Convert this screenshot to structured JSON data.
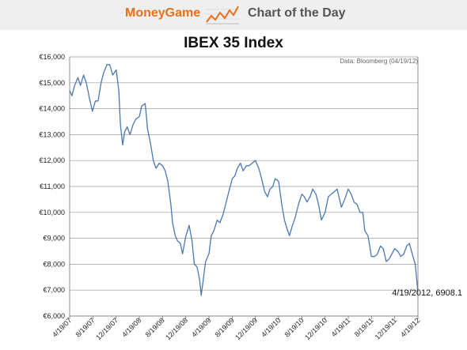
{
  "header": {
    "brand": "MoneyGame",
    "section": "Chart of the Day",
    "brand_color": "#e8701a",
    "icon": "rising-line-chart-icon"
  },
  "chart_data": {
    "type": "line",
    "title": "IBEX 35 Index",
    "source_note": "Data: Bloomberg (04/19/12)",
    "xlabel": "",
    "ylabel": "",
    "y_tick_labels": [
      "€6,000",
      "€7,000",
      "€8,000",
      "€9,000",
      "€10,000",
      "€11,000",
      "€12,000",
      "€13,000",
      "€14,000",
      "€15,000",
      "€16,000"
    ],
    "x_tick_labels": [
      "4/19/07",
      "8/19/07",
      "12/19/07",
      "4/19/08",
      "8/19/08",
      "12/19/08",
      "4/19/09",
      "8/19/09",
      "12/19/09",
      "4/19/10",
      "8/19/10",
      "12/19/10",
      "4/19/11",
      "8/19/11",
      "12/19/11",
      "4/19/12"
    ],
    "ylim": [
      6000,
      16000
    ],
    "grid": "horizontal",
    "legend": "none",
    "line_color": "#4a78b0",
    "series": [
      {
        "x": [
          "2007-04-19",
          "2007-05-01",
          "2007-05-15",
          "2007-06-01",
          "2007-06-15",
          "2007-07-01",
          "2007-07-15",
          "2007-08-01",
          "2007-08-16",
          "2007-09-01",
          "2007-09-15",
          "2007-10-01",
          "2007-10-15",
          "2007-11-01",
          "2007-11-15",
          "2007-12-01",
          "2007-12-19",
          "2008-01-02",
          "2008-01-10",
          "2008-01-22",
          "2008-02-01",
          "2008-02-15",
          "2008-03-01",
          "2008-03-17",
          "2008-04-01",
          "2008-04-19",
          "2008-05-01",
          "2008-05-19",
          "2008-06-01",
          "2008-06-15",
          "2008-07-01",
          "2008-07-15",
          "2008-08-01",
          "2008-08-19",
          "2008-09-01",
          "2008-09-15",
          "2008-10-01",
          "2008-10-10",
          "2008-10-24",
          "2008-11-05",
          "2008-11-20",
          "2008-12-01",
          "2008-12-19",
          "2009-01-05",
          "2009-01-20",
          "2009-02-01",
          "2009-02-15",
          "2009-03-01",
          "2009-03-09",
          "2009-03-20",
          "2009-04-01",
          "2009-04-19",
          "2009-05-01",
          "2009-05-15",
          "2009-06-01",
          "2009-06-15",
          "2009-07-01",
          "2009-07-15",
          "2009-08-01",
          "2009-08-19",
          "2009-09-01",
          "2009-09-15",
          "2009-10-01",
          "2009-10-15",
          "2009-11-01",
          "2009-11-15",
          "2009-12-01",
          "2009-12-19",
          "2010-01-05",
          "2010-01-20",
          "2010-02-05",
          "2010-02-20",
          "2010-03-05",
          "2010-03-20",
          "2010-04-01",
          "2010-04-19",
          "2010-05-06",
          "2010-05-20",
          "2010-06-01",
          "2010-06-15",
          "2010-07-01",
          "2010-07-15",
          "2010-08-01",
          "2010-08-19",
          "2010-09-01",
          "2010-09-15",
          "2010-10-01",
          "2010-10-15",
          "2010-11-01",
          "2010-11-15",
          "2010-11-30",
          "2010-12-19",
          "2011-01-05",
          "2011-01-20",
          "2011-02-05",
          "2011-02-20",
          "2011-03-05",
          "2011-03-15",
          "2011-04-01",
          "2011-04-19",
          "2011-05-05",
          "2011-05-20",
          "2011-06-05",
          "2011-06-20",
          "2011-07-05",
          "2011-07-15",
          "2011-08-01",
          "2011-08-10",
          "2011-08-19",
          "2011-09-05",
          "2011-09-20",
          "2011-10-05",
          "2011-10-20",
          "2011-11-05",
          "2011-11-20",
          "2011-12-05",
          "2011-12-19",
          "2012-01-05",
          "2012-01-20",
          "2012-02-05",
          "2012-02-20",
          "2012-03-05",
          "2012-03-20",
          "2012-04-05",
          "2012-04-19"
        ],
        "values": [
          14700,
          14500,
          14900,
          15200,
          14900,
          15300,
          15000,
          14400,
          13900,
          14300,
          14300,
          15000,
          15400,
          15700,
          15700,
          15300,
          15500,
          14700,
          13400,
          12600,
          13100,
          13300,
          13000,
          13400,
          13600,
          13700,
          14100,
          14200,
          13200,
          12700,
          12000,
          11700,
          11900,
          11800,
          11600,
          11200,
          10300,
          9600,
          9100,
          8900,
          8800,
          8400,
          9100,
          9500,
          8900,
          8000,
          7900,
          7400,
          6800,
          7400,
          8100,
          8400,
          9100,
          9300,
          9700,
          9600,
          9900,
          10300,
          10800,
          11300,
          11400,
          11700,
          11900,
          11600,
          11800,
          11800,
          11900,
          12000,
          11700,
          11300,
          10800,
          10600,
          10900,
          11000,
          11300,
          11200,
          10300,
          9700,
          9400,
          9100,
          9500,
          9800,
          10300,
          10700,
          10600,
          10400,
          10600,
          10900,
          10700,
          10300,
          9700,
          10000,
          10600,
          10700,
          10800,
          10900,
          10500,
          10200,
          10500,
          10900,
          10700,
          10400,
          10300,
          10000,
          10000,
          9300,
          9100,
          8700,
          8300,
          8300,
          8400,
          8700,
          8600,
          8100,
          8200,
          8400,
          8600,
          8500,
          8300,
          8400,
          8700,
          8800,
          8400,
          8000,
          6908.1
        ]
      }
    ],
    "annotation": "4/19/2012, 6908.1"
  }
}
